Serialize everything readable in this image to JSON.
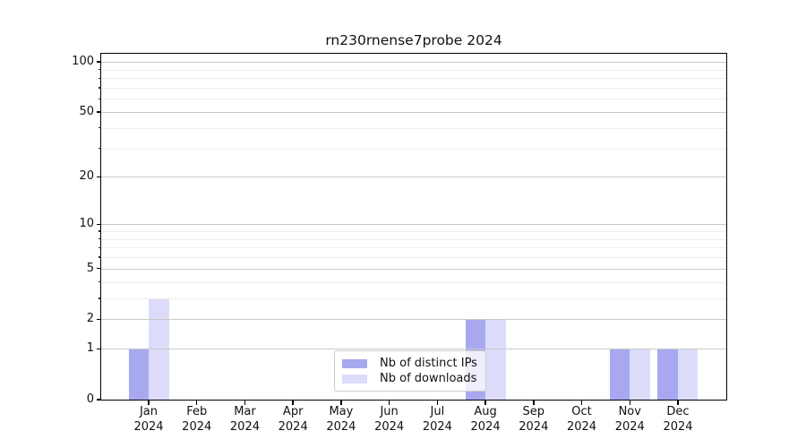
{
  "title": "rn230rnense7probe 2024",
  "chart_data": {
    "type": "bar",
    "title": "rn230rnense7probe 2024",
    "categories": [
      "Jan 2024",
      "Feb 2024",
      "Mar 2024",
      "Apr 2024",
      "May 2024",
      "Jun 2024",
      "Jul 2024",
      "Aug 2024",
      "Sep 2024",
      "Oct 2024",
      "Nov 2024",
      "Dec 2024"
    ],
    "series": [
      {
        "name": "Nb of distinct IPs",
        "color": "#a8a8f1",
        "values": [
          1,
          0,
          0,
          0,
          0,
          0,
          0,
          2,
          0,
          0,
          1,
          1
        ]
      },
      {
        "name": "Nb of downloads",
        "color": "#dcdcfa",
        "values": [
          3,
          0,
          0,
          0,
          0,
          0,
          0,
          2,
          0,
          0,
          1,
          1
        ]
      }
    ],
    "xlabel": "",
    "ylabel": "",
    "yscale": "log1p",
    "ylim": [
      0,
      120
    ],
    "yticks": [
      {
        "value": 0,
        "label": "0"
      },
      {
        "value": 1,
        "label": "1"
      },
      {
        "value": 2,
        "label": "2"
      },
      {
        "value": 5,
        "label": "5"
      },
      {
        "value": 10,
        "label": "10"
      },
      {
        "value": 20,
        "label": "20"
      },
      {
        "value": 50,
        "label": "50"
      },
      {
        "value": 100,
        "label": "100"
      }
    ],
    "minor_yticks": [
      3,
      4,
      6,
      7,
      8,
      9,
      30,
      40,
      60,
      70,
      80,
      90
    ],
    "grid": true,
    "grid_above_bars": true,
    "legend_position": "lower center inside"
  },
  "legend": {
    "items": [
      {
        "label": "Nb of distinct IPs",
        "color": "#a8a8f1"
      },
      {
        "label": "Nb of downloads",
        "color": "#dcdcfa"
      }
    ]
  },
  "colors": {
    "distinct_ips_bar": "#a8a8f1",
    "downloads_bar": "#dcdcfa",
    "major_grid": "#c9c9c9",
    "minor_grid": "#ededed",
    "axis": "#000000",
    "background": "#ffffff"
  }
}
